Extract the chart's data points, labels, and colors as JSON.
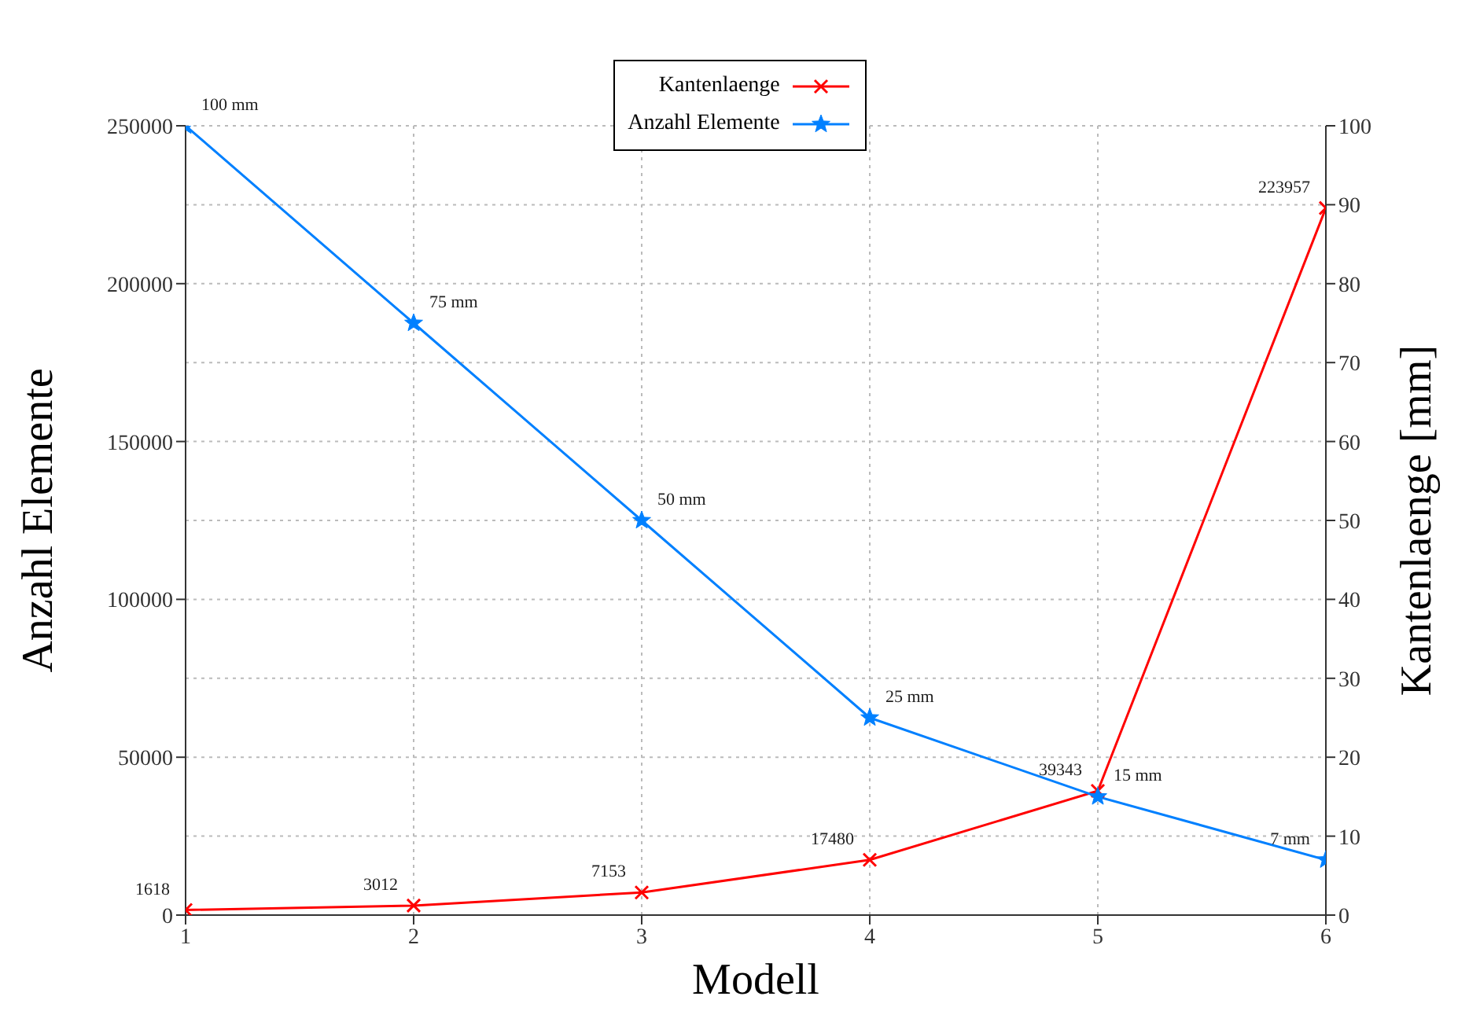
{
  "chart_data": {
    "type": "line",
    "xlabel": "Modell",
    "ylabel": "Anzahl Elemente",
    "y2label": "Kantenlaenge [mm]",
    "x": [
      1,
      2,
      3,
      4,
      5,
      6
    ],
    "xlim": [
      1,
      6
    ],
    "xticks": [
      1,
      2,
      3,
      4,
      5,
      6
    ],
    "ylim": [
      0,
      250000
    ],
    "yticks": [
      0,
      50000,
      100000,
      150000,
      200000,
      250000
    ],
    "y2lim": [
      0,
      100
    ],
    "y2ticks": [
      0,
      10,
      20,
      30,
      40,
      50,
      60,
      70,
      80,
      90,
      100
    ],
    "grid": true,
    "legend": "top",
    "line_style": "solid",
    "series": [
      {
        "name": "Kantenlaenge",
        "color": "#ff0000",
        "marker": "cross",
        "values": [
          1618,
          3012,
          7153,
          17480,
          39343,
          223957
        ],
        "value_labels": [
          "1618",
          "3012",
          "7153",
          "17480",
          "39343",
          "223957"
        ]
      },
      {
        "name": "Anzahl Elemente",
        "color": "#0080ff",
        "marker": "star",
        "axis": "y2",
        "values": [
          100,
          75,
          50,
          25,
          15,
          7
        ],
        "value_labels": [
          "100 mm",
          "75 mm",
          "50 mm",
          "25 mm",
          "15 mm",
          "7 mm"
        ]
      }
    ]
  }
}
